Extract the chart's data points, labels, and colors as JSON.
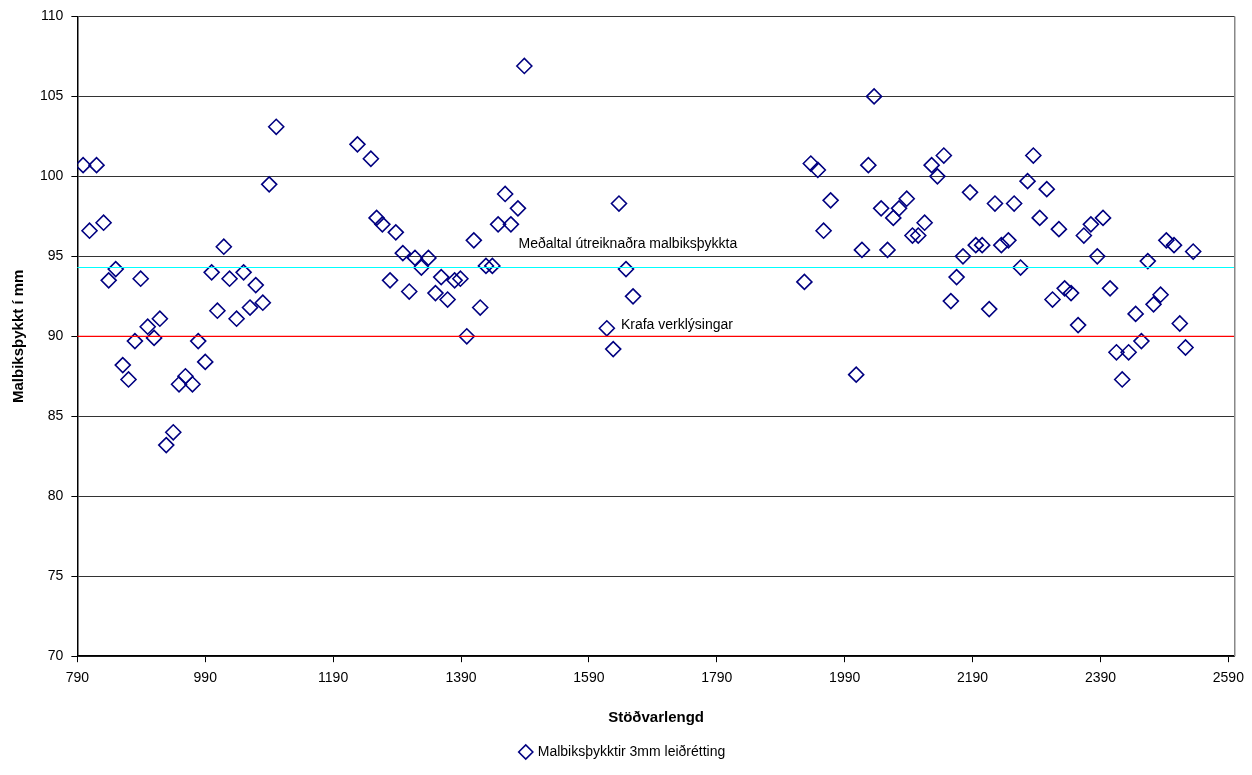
{
  "chart_data": {
    "type": "scatter",
    "xlabel": "Stöðvarlengd",
    "ylabel": "Malbiksþykkt í mm",
    "x": [
      799,
      809,
      820,
      831,
      839,
      850,
      861,
      870,
      880,
      889,
      900,
      910,
      919,
      929,
      940,
      949,
      959,
      970,
      979,
      990,
      1000,
      1009,
      1019,
      1028,
      1039,
      1050,
      1060,
      1069,
      1080,
      1090,
      1101,
      1228,
      1249,
      1258,
      1267,
      1279,
      1288,
      1299,
      1309,
      1318,
      1328,
      1339,
      1350,
      1359,
      1369,
      1380,
      1389,
      1399,
      1410,
      1420,
      1429,
      1439,
      1448,
      1459,
      1468,
      1479,
      1489,
      1618,
      1628,
      1637,
      1648,
      1659,
      1927,
      1937,
      1948,
      1957,
      1968,
      2008,
      2017,
      2027,
      2036,
      2047,
      2057,
      2066,
      2075,
      2087,
      2096,
      2105,
      2115,
      2126,
      2135,
      2145,
      2156,
      2165,
      2175,
      2186,
      2195,
      2205,
      2216,
      2225,
      2235,
      2246,
      2255,
      2265,
      2276,
      2285,
      2295,
      2306,
      2315,
      2325,
      2334,
      2344,
      2355,
      2364,
      2375,
      2385,
      2394,
      2405,
      2415,
      2424,
      2434,
      2445,
      2454,
      2464,
      2473,
      2484,
      2493,
      2505,
      2514,
      2523,
      2535
    ],
    "series": [
      {
        "name": "Malbiksþykktir 3mm leiðrétting",
        "color": "#000080",
        "values": [
          100.7,
          96.6,
          100.7,
          97.1,
          93.5,
          94.2,
          88.2,
          87.3,
          89.7,
          93.6,
          90.6,
          89.9,
          91.1,
          83.2,
          84.0,
          87.0,
          87.5,
          87.0,
          89.7,
          88.4,
          94.0,
          91.6,
          95.6,
          93.6,
          91.1,
          94.0,
          91.8,
          93.2,
          92.1,
          99.5,
          103.1,
          102.0,
          101.1,
          97.4,
          97.0,
          93.5,
          96.5,
          95.2,
          92.8,
          94.9,
          94.3,
          94.9,
          92.7,
          93.7,
          92.3,
          93.5,
          93.6,
          90.0,
          96.0,
          91.8,
          94.4,
          94.4,
          97.0,
          98.9,
          97.0,
          98.0,
          106.9,
          90.5,
          89.2,
          98.3,
          94.2,
          92.5,
          93.4,
          100.8,
          100.4,
          96.6,
          98.5,
          87.6,
          95.4,
          100.7,
          105.0,
          98.0,
          95.4,
          97.4,
          98.0,
          98.6,
          96.3,
          96.3,
          97.1,
          100.7,
          100.0,
          101.3,
          92.2,
          93.7,
          95.0,
          99.0,
          95.7,
          95.7,
          91.7,
          98.3,
          95.7,
          96.0,
          98.3,
          94.3,
          99.7,
          101.3,
          97.4,
          99.2,
          92.3,
          96.7,
          93.0,
          92.7,
          90.7,
          96.3,
          97.0,
          95.0,
          97.4,
          93.0,
          89.0,
          87.3,
          89.0,
          91.4,
          89.7,
          94.7,
          92.0,
          92.6,
          96.0,
          95.7,
          90.8,
          89.3,
          95.3
        ]
      }
    ],
    "xlim": [
      790,
      2600
    ],
    "xticks": [
      790,
      990,
      1190,
      1390,
      1590,
      1790,
      1990,
      2190,
      2390,
      2590
    ],
    "ylim": [
      70,
      110
    ],
    "yticks": [
      70,
      75,
      80,
      85,
      90,
      95,
      100,
      105,
      110
    ],
    "grid": "y",
    "legend": "bottom",
    "marker": "diamond",
    "ref_lines": [
      {
        "axis": "y",
        "value": 94.3,
        "label": "Meðaltal útreiknaðra malbiksþykkta",
        "color": "#00ffff"
      },
      {
        "axis": "y",
        "value": 90,
        "label": "Krafa verklýsingar",
        "color": "#ff0000"
      }
    ]
  }
}
